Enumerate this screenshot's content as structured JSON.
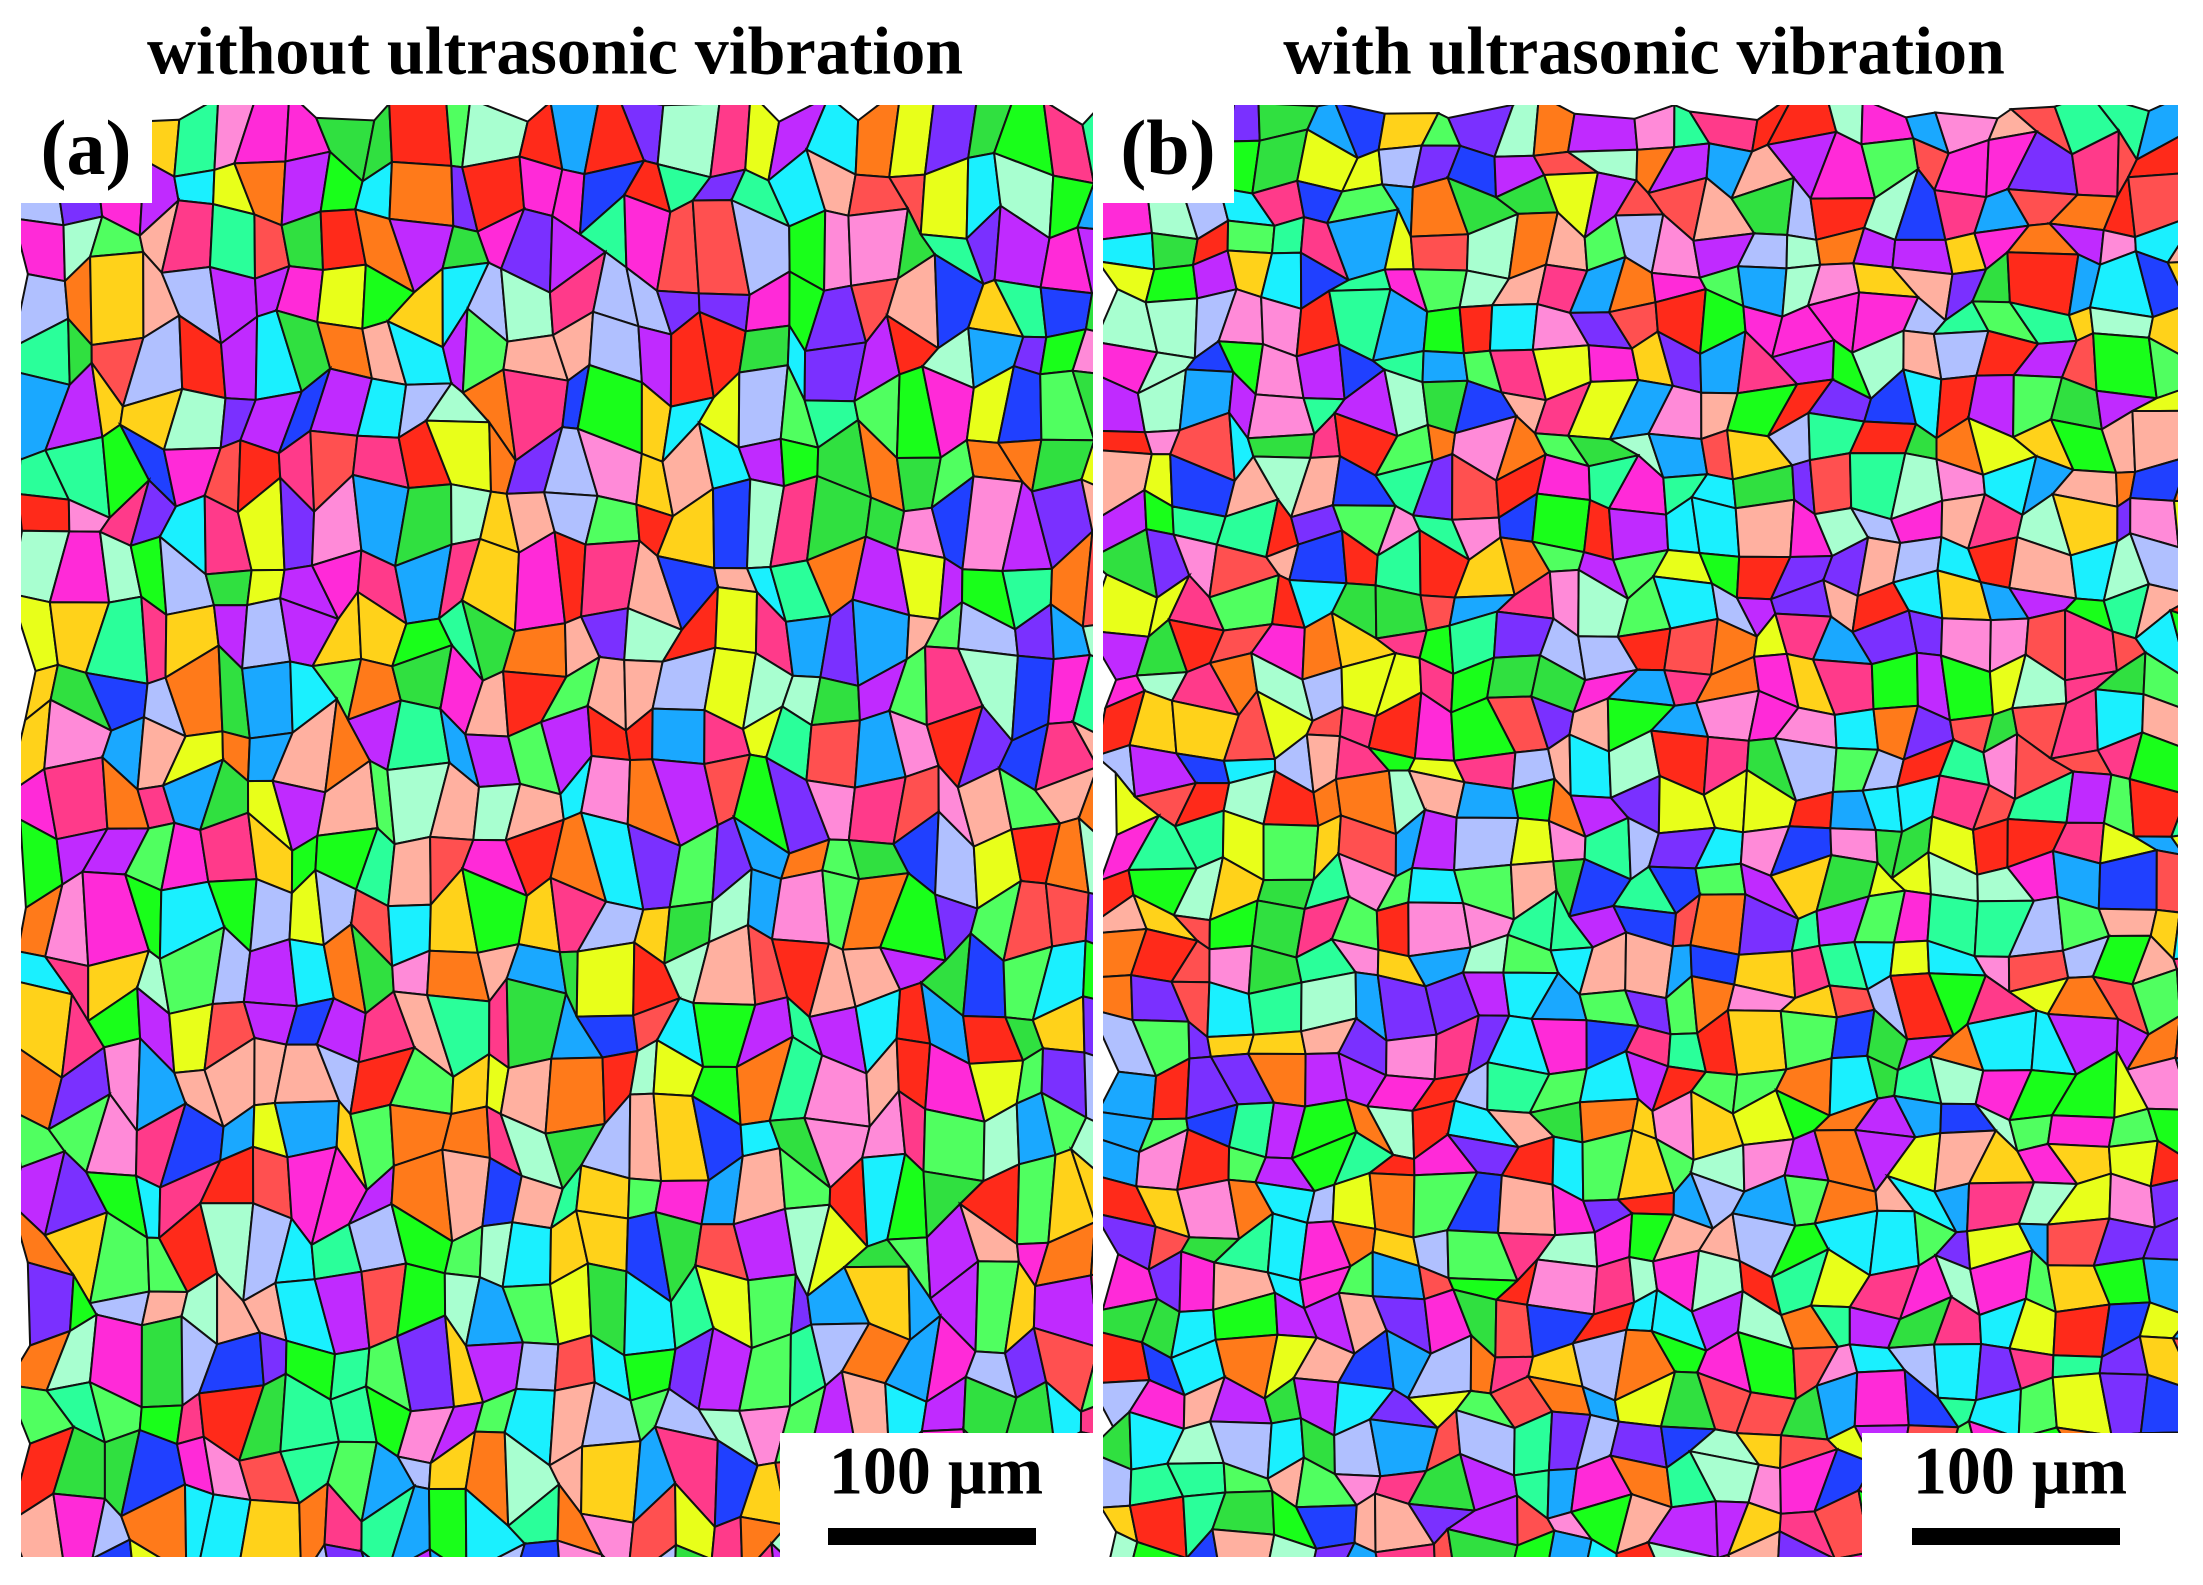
{
  "panels": [
    {
      "title": "without ultrasonic vibration",
      "label": "(a)",
      "scale_bar": "100 μm"
    },
    {
      "title": "with ultrasonic vibration",
      "label": "(b)",
      "scale_bar": "100 μm"
    }
  ]
}
